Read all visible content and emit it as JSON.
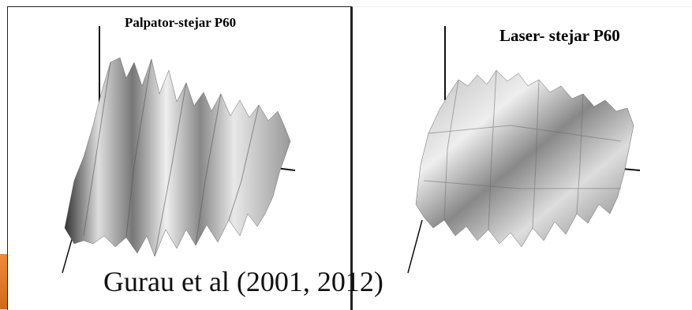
{
  "panels": {
    "left_title": "Palpator-stejar P60",
    "right_title": "Laser- stejar P60"
  },
  "caption": "Gurau et al (2001, 2012)"
}
